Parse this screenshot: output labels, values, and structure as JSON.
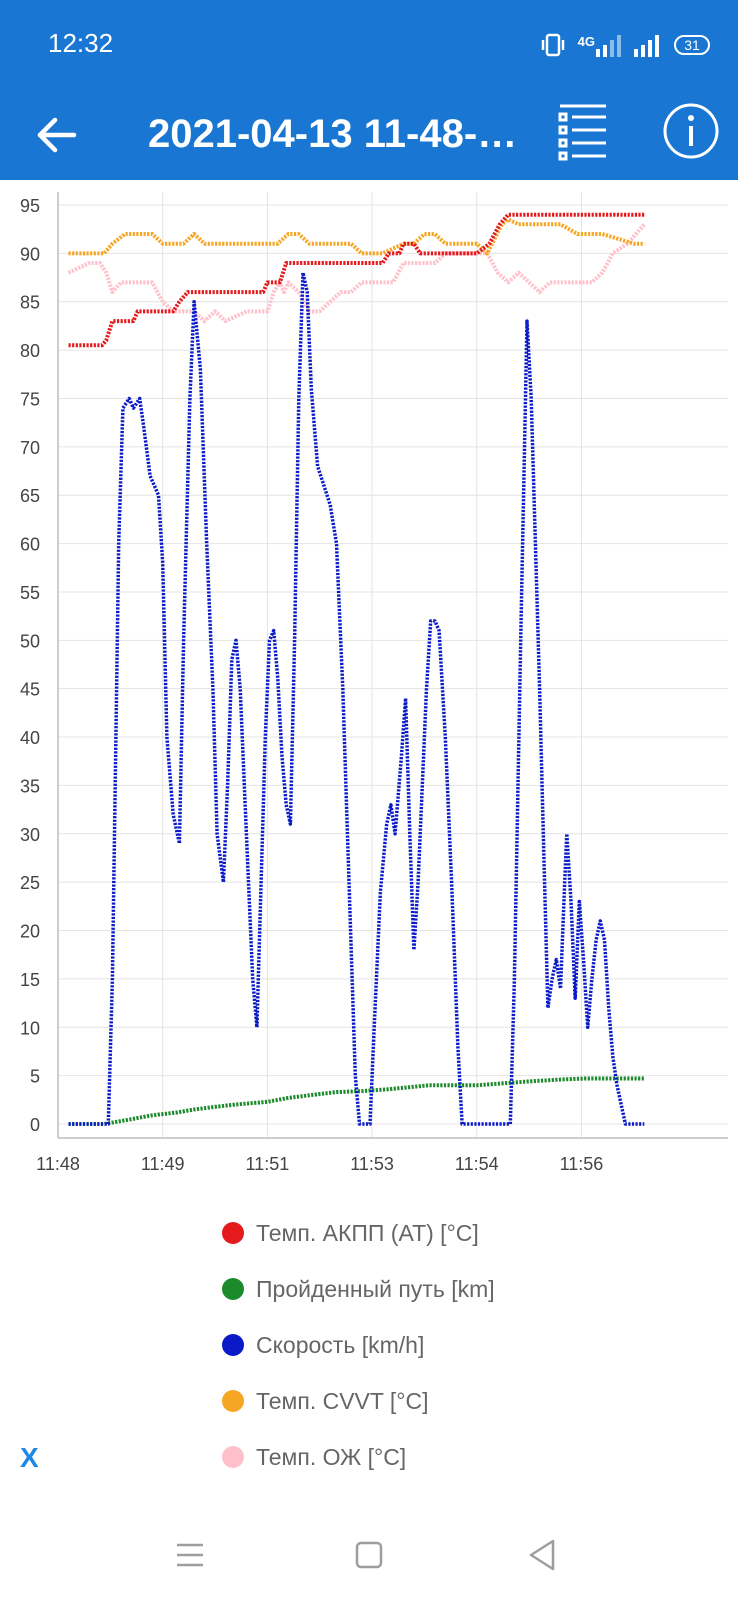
{
  "status": {
    "time": "12:32",
    "network": "4G",
    "battery": "31"
  },
  "toolbar": {
    "title": "2021-04-13 11-48-…"
  },
  "chart_data": {
    "type": "line",
    "xlim": [
      0,
      32
    ],
    "ylim": [
      0,
      95
    ],
    "y_ticks": [
      0,
      5,
      10,
      15,
      20,
      25,
      30,
      35,
      40,
      45,
      50,
      55,
      60,
      65,
      70,
      75,
      80,
      85,
      90,
      95
    ],
    "x_ticks": [
      {
        "t": 0,
        "label": "11:48"
      },
      {
        "t": 5,
        "label": "11:49"
      },
      {
        "t": 10,
        "label": "11:51"
      },
      {
        "t": 15,
        "label": "11:53"
      },
      {
        "t": 20,
        "label": "11:54"
      },
      {
        "t": 25,
        "label": "11:56"
      }
    ],
    "grid": true,
    "legend_position": "bottom",
    "series": [
      {
        "name": "Темп. АКПП (AT) [°C]",
        "color": "#e41a1c",
        "points": [
          [
            0.5,
            80.5
          ],
          [
            2.1,
            80.5
          ],
          [
            2.3,
            81
          ],
          [
            2.6,
            83
          ],
          [
            3.6,
            83
          ],
          [
            3.8,
            84
          ],
          [
            5.5,
            84
          ],
          [
            5.8,
            85
          ],
          [
            6.2,
            86
          ],
          [
            9.8,
            86
          ],
          [
            10,
            87
          ],
          [
            10.6,
            87
          ],
          [
            10.9,
            89
          ],
          [
            15.5,
            89
          ],
          [
            15.8,
            90
          ],
          [
            16.3,
            90
          ],
          [
            16.5,
            91
          ],
          [
            17,
            91
          ],
          [
            17.3,
            90
          ],
          [
            20,
            90
          ],
          [
            20.6,
            91
          ],
          [
            21.1,
            93
          ],
          [
            21.5,
            94
          ],
          [
            25.2,
            94
          ],
          [
            26.2,
            94
          ],
          [
            28,
            94
          ]
        ]
      },
      {
        "name": "Пройденный путь [km]",
        "color": "#1b8a2a",
        "points": [
          [
            0.5,
            0
          ],
          [
            2.2,
            0
          ],
          [
            3.5,
            0.5
          ],
          [
            4.5,
            0.9
          ],
          [
            5.7,
            1.2
          ],
          [
            6.5,
            1.5
          ],
          [
            7.6,
            1.8
          ],
          [
            8.4,
            2
          ],
          [
            10,
            2.3
          ],
          [
            11,
            2.7
          ],
          [
            12.5,
            3.1
          ],
          [
            13.3,
            3.3
          ],
          [
            14.5,
            3.4
          ],
          [
            15.8,
            3.6
          ],
          [
            16.8,
            3.8
          ],
          [
            17.7,
            4
          ],
          [
            19.5,
            4
          ],
          [
            20,
            4
          ],
          [
            21.2,
            4.2
          ],
          [
            22.5,
            4.4
          ],
          [
            24,
            4.6
          ],
          [
            25.2,
            4.7
          ],
          [
            28,
            4.7
          ]
        ]
      },
      {
        "name": "Скорость [km/h]",
        "color": "#0a1ac8",
        "points": [
          [
            0.5,
            0
          ],
          [
            2.1,
            0
          ],
          [
            2.4,
            0
          ],
          [
            2.6,
            15
          ],
          [
            2.9,
            60
          ],
          [
            3.1,
            74
          ],
          [
            3.4,
            75
          ],
          [
            3.6,
            74
          ],
          [
            3.9,
            75
          ],
          [
            4.1,
            72
          ],
          [
            4.4,
            67
          ],
          [
            4.8,
            65
          ],
          [
            5,
            58
          ],
          [
            5.2,
            40
          ],
          [
            5.5,
            32
          ],
          [
            5.8,
            29
          ],
          [
            6,
            50
          ],
          [
            6.3,
            75
          ],
          [
            6.5,
            85
          ],
          [
            6.8,
            78
          ],
          [
            7.1,
            60
          ],
          [
            7.4,
            45
          ],
          [
            7.6,
            30
          ],
          [
            7.9,
            25
          ],
          [
            8.1,
            35
          ],
          [
            8.3,
            48
          ],
          [
            8.5,
            50
          ],
          [
            8.7,
            45
          ],
          [
            9,
            30
          ],
          [
            9.3,
            15
          ],
          [
            9.5,
            10
          ],
          [
            9.7,
            25
          ],
          [
            9.9,
            40
          ],
          [
            10.1,
            50
          ],
          [
            10.3,
            51
          ],
          [
            10.5,
            46
          ],
          [
            10.7,
            38
          ],
          [
            10.9,
            33
          ],
          [
            11.1,
            31
          ],
          [
            11.3,
            50
          ],
          [
            11.5,
            75
          ],
          [
            11.7,
            88
          ],
          [
            11.9,
            86
          ],
          [
            12.1,
            76
          ],
          [
            12.4,
            68
          ],
          [
            12.7,
            66
          ],
          [
            13,
            64
          ],
          [
            13.3,
            60
          ],
          [
            13.6,
            45
          ],
          [
            13.9,
            25
          ],
          [
            14.2,
            5
          ],
          [
            14.4,
            0
          ],
          [
            14.9,
            0
          ],
          [
            15.1,
            10
          ],
          [
            15.4,
            24
          ],
          [
            15.7,
            31
          ],
          [
            15.9,
            33
          ],
          [
            16.1,
            30
          ],
          [
            16.4,
            38
          ],
          [
            16.6,
            44
          ],
          [
            16.8,
            30
          ],
          [
            17,
            18
          ],
          [
            17.2,
            25
          ],
          [
            17.4,
            35
          ],
          [
            17.6,
            45
          ],
          [
            17.8,
            52
          ],
          [
            18,
            52
          ],
          [
            18.2,
            51
          ],
          [
            18.5,
            40
          ],
          [
            18.8,
            25
          ],
          [
            19.1,
            8
          ],
          [
            19.3,
            0
          ],
          [
            20.5,
            0
          ],
          [
            21.6,
            0
          ],
          [
            21.8,
            15
          ],
          [
            22.1,
            50
          ],
          [
            22.4,
            83
          ],
          [
            22.6,
            75
          ],
          [
            22.8,
            60
          ],
          [
            23,
            45
          ],
          [
            23.2,
            28
          ],
          [
            23.4,
            12
          ],
          [
            23.6,
            15
          ],
          [
            23.8,
            17
          ],
          [
            24,
            14
          ],
          [
            24.2,
            25
          ],
          [
            24.3,
            30
          ],
          [
            24.5,
            23
          ],
          [
            24.7,
            13
          ],
          [
            24.9,
            23
          ],
          [
            25.1,
            17
          ],
          [
            25.3,
            10
          ],
          [
            25.5,
            15
          ],
          [
            25.7,
            19
          ],
          [
            25.9,
            21
          ],
          [
            26.1,
            19
          ],
          [
            26.3,
            12
          ],
          [
            26.5,
            7
          ],
          [
            26.7,
            4
          ],
          [
            26.9,
            2
          ],
          [
            27.1,
            0
          ],
          [
            28,
            0
          ]
        ]
      },
      {
        "name": "Темп. CVVT [°C]",
        "color": "#f5a623",
        "points": [
          [
            0.5,
            90
          ],
          [
            2.2,
            90
          ],
          [
            2.6,
            91
          ],
          [
            3.2,
            92
          ],
          [
            4.5,
            92
          ],
          [
            5,
            91
          ],
          [
            6,
            91
          ],
          [
            6.5,
            92
          ],
          [
            7,
            91
          ],
          [
            10.5,
            91
          ],
          [
            11,
            92
          ],
          [
            11.5,
            92
          ],
          [
            12,
            91
          ],
          [
            14,
            91
          ],
          [
            14.5,
            90
          ],
          [
            15.5,
            90
          ],
          [
            16.5,
            91
          ],
          [
            17,
            91
          ],
          [
            17.5,
            92
          ],
          [
            18,
            92
          ],
          [
            18.5,
            91
          ],
          [
            20,
            91
          ],
          [
            20.5,
            90
          ],
          [
            21.2,
            93
          ],
          [
            21.5,
            93.5
          ],
          [
            22,
            93
          ],
          [
            24,
            93
          ],
          [
            24.8,
            92
          ],
          [
            26,
            92
          ],
          [
            27.5,
            91
          ],
          [
            28,
            91
          ]
        ]
      },
      {
        "name": "Темп. ОЖ [°C]",
        "color": "#ffc0cb",
        "points": [
          [
            0.5,
            88
          ],
          [
            1,
            88.5
          ],
          [
            1.5,
            89
          ],
          [
            2,
            89
          ],
          [
            2.3,
            88
          ],
          [
            2.6,
            86
          ],
          [
            3,
            87
          ],
          [
            3.5,
            87
          ],
          [
            4.5,
            87
          ],
          [
            5,
            85
          ],
          [
            5.5,
            84
          ],
          [
            6,
            84
          ],
          [
            6.5,
            84
          ],
          [
            7,
            83
          ],
          [
            7.5,
            84
          ],
          [
            8,
            83
          ],
          [
            9,
            84
          ],
          [
            10,
            84
          ],
          [
            10.3,
            86
          ],
          [
            10.6,
            87
          ],
          [
            10.8,
            86
          ],
          [
            11,
            87
          ],
          [
            11.5,
            86
          ],
          [
            12,
            84
          ],
          [
            12.5,
            84
          ],
          [
            13,
            85
          ],
          [
            13.5,
            86
          ],
          [
            14,
            86
          ],
          [
            14.5,
            87
          ],
          [
            15,
            87
          ],
          [
            16,
            87
          ],
          [
            16.5,
            89
          ],
          [
            17,
            89
          ],
          [
            17.5,
            89
          ],
          [
            18,
            89
          ],
          [
            18.5,
            90
          ],
          [
            19.5,
            90
          ],
          [
            20.5,
            90
          ],
          [
            21,
            88
          ],
          [
            21.5,
            87
          ],
          [
            22,
            88
          ],
          [
            22.5,
            87
          ],
          [
            23,
            86
          ],
          [
            23.5,
            87
          ],
          [
            24,
            87
          ],
          [
            24.5,
            87
          ],
          [
            25,
            87
          ],
          [
            25.5,
            87
          ],
          [
            26,
            88
          ],
          [
            26.5,
            90
          ],
          [
            27.2,
            91
          ],
          [
            28,
            93
          ]
        ]
      }
    ]
  },
  "legend": {
    "items": [
      {
        "label": "Темп. АКПП (AT) [°C]",
        "color": "#e41a1c"
      },
      {
        "label": "Пройденный путь [km]",
        "color": "#1b8a2a"
      },
      {
        "label": "Скорость [km/h]",
        "color": "#0a1ac8"
      },
      {
        "label": "Темп. CVVT [°C]",
        "color": "#f5a623"
      },
      {
        "label": "Темп. ОЖ [°C]",
        "color": "#ffc0cb"
      }
    ]
  },
  "close_label": "X"
}
